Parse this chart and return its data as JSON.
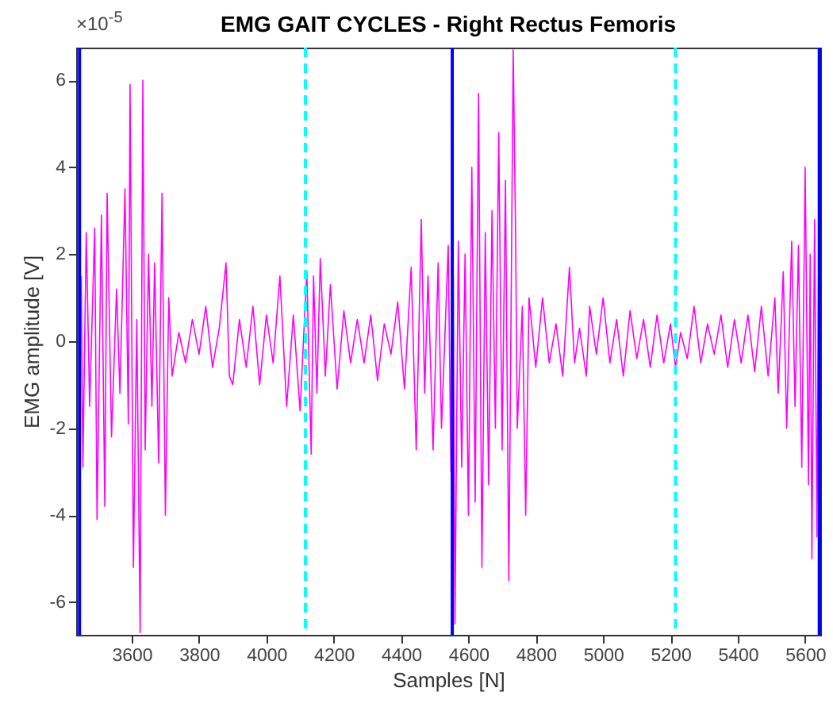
{
  "chart_data": {
    "type": "line",
    "title": "EMG GAIT CYCLES - Right Rectus Femoris",
    "xlabel": "Samples [N]",
    "ylabel": "EMG amplitude [V]",
    "annotations": [
      "×10$^{-5}$"
    ],
    "x": [
      3450,
      3455,
      3465,
      3475,
      3490,
      3497,
      3510,
      3520,
      3527,
      3540,
      3555,
      3565,
      3580,
      3590,
      3595,
      3605,
      3615,
      3625,
      3633,
      3640,
      3650,
      3660,
      3668,
      3680,
      3690,
      3700,
      3710,
      3720,
      3740,
      3760,
      3780,
      3800,
      3820,
      3840,
      3860,
      3880,
      3890,
      3900,
      3920,
      3940,
      3960,
      3980,
      4000,
      4020,
      4040,
      4060,
      4080,
      4100,
      4120,
      4133,
      4140,
      4150,
      4160,
      4175,
      4190,
      4210,
      4230,
      4250,
      4270,
      4290,
      4310,
      4330,
      4350,
      4370,
      4390,
      4410,
      4430,
      4445,
      4460,
      4470,
      4480,
      4495,
      4510,
      4520,
      4540,
      4548,
      4555,
      4560,
      4570,
      4580,
      4590,
      4600,
      4610,
      4620,
      4630,
      4640,
      4650,
      4660,
      4670,
      4680,
      4690,
      4700,
      4710,
      4720,
      4733,
      4740,
      4745,
      4760,
      4770,
      4780,
      4800,
      4820,
      4840,
      4860,
      4880,
      4900,
      4915,
      4930,
      4950,
      4960,
      4980,
      5000,
      5020,
      5040,
      5060,
      5080,
      5100,
      5120,
      5140,
      5160,
      5180,
      5200,
      5215,
      5230,
      5250,
      5270,
      5290,
      5310,
      5330,
      5350,
      5370,
      5390,
      5410,
      5430,
      5450,
      5470,
      5490,
      5510,
      5520,
      5535,
      5545,
      5560,
      5570,
      5580,
      5590,
      5600,
      5610,
      5615,
      5620,
      5628,
      5635,
      5640
    ],
    "series": [
      {
        "color": "#ff00ff",
        "values": [
          1.5,
          -2.9,
          2.5,
          -1.5,
          2.6,
          -4.1,
          2.9,
          -3.8,
          3.4,
          -2.2,
          1.2,
          -1.2,
          3.5,
          -1.9,
          5.9,
          -5.2,
          0.5,
          -6.7,
          6,
          -2.5,
          2,
          -1.5,
          1.8,
          -2.8,
          3.4,
          -4,
          1,
          -0.8,
          0.2,
          -0.5,
          0.5,
          -0.3,
          0.8,
          -0.6,
          0.3,
          1.8,
          -0.8,
          -1,
          0.5,
          -0.6,
          0.8,
          -1,
          0.6,
          -0.5,
          1.5,
          -1.5,
          0.6,
          -1.6,
          1.6,
          -2.6,
          1.5,
          -1.2,
          1.9,
          -0.8,
          1.3,
          -1.1,
          0.7,
          -0.5,
          0.5,
          -0.5,
          0.6,
          -0.9,
          0.4,
          -0.3,
          0.9,
          -1.1,
          1.7,
          -2.5,
          2.8,
          -1.2,
          1.5,
          -2.5,
          1.8,
          -2,
          2.2,
          -3,
          1.5,
          -6.5,
          2.3,
          -2.9,
          2,
          -4,
          4,
          -3.7,
          5.7,
          -5.2,
          2.5,
          -3.3,
          3,
          -2,
          4.8,
          -2.5,
          3.7,
          -5.5,
          6.7,
          2.5,
          -2,
          0.8,
          -4,
          1,
          -0.6,
          1,
          -0.5,
          0.4,
          -0.8,
          1.7,
          -0.5,
          0.3,
          -0.8,
          0.8,
          -0.3,
          1,
          -0.5,
          0.5,
          -0.8,
          0.7,
          -0.4,
          0.5,
          -0.6,
          0.6,
          -0.5,
          0.4,
          -0.6,
          0.2,
          -0.4,
          0.8,
          -0.5,
          0.4,
          -0.3,
          0.6,
          -0.6,
          0.5,
          -0.5,
          0.6,
          -0.7,
          0.8,
          -0.8,
          1,
          -1.2,
          1.6,
          -2,
          2.3,
          -1.5,
          2.2,
          -2.9,
          4,
          -3.3,
          2,
          -5,
          2.8,
          -4.5,
          1.8
        ]
      }
    ],
    "xlim": [
      3435,
      5645
    ],
    "xticks": [
      3600,
      3800,
      4000,
      4200,
      4400,
      4600,
      4800,
      5000,
      5200,
      5400,
      5600
    ],
    "ylim": [
      -6.75,
      6.75
    ],
    "yticks": [
      -6,
      -4,
      -2,
      0,
      2,
      4,
      6
    ],
    "ref_lines": [
      {
        "axis": "x",
        "value": 4552,
        "color": "#0000ff",
        "line_style": "solid"
      },
      {
        "axis": "x",
        "value": 5642,
        "color": "#0000ff",
        "line_style": "solid"
      },
      {
        "axis": "x",
        "value": 4116,
        "color": "#00ffff",
        "line_style": "dashed"
      },
      {
        "axis": "x",
        "value": 5215,
        "color": "#00ffff",
        "line_style": "dashed"
      },
      {
        "axis": "x",
        "value": 3445,
        "color": "#0000ff",
        "line_style": "solid"
      }
    ],
    "grid": false,
    "legend": false,
    "marker": "none",
    "line_style": "solid"
  }
}
